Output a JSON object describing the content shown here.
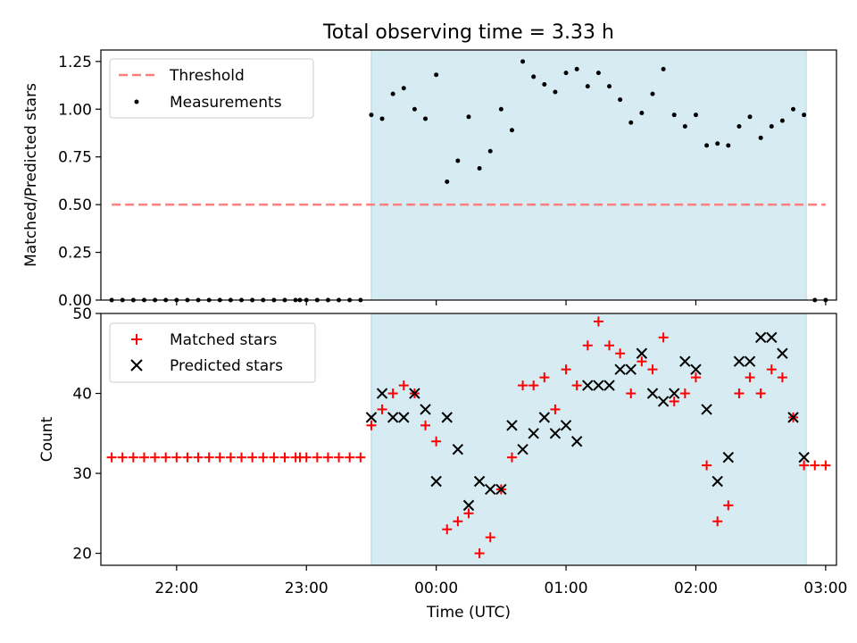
{
  "figure": {
    "title": "Total observing time = 3.33 h"
  },
  "chart_data": [
    {
      "type": "scatter",
      "ylabel": "Matched/Predicted stars",
      "ylim": [
        0,
        1.31
      ],
      "xlim": [
        "21:25",
        "03:05"
      ],
      "y_ticks": [
        "0.00",
        "0.25",
        "0.50",
        "0.75",
        "1.00",
        "1.25"
      ],
      "grid": false,
      "legend_placement": "top-left",
      "observing_window": {
        "start": "23:30",
        "end": "02:51",
        "color": "#add8e6"
      },
      "threshold": {
        "name": "Threshold",
        "value": 0.5,
        "x_range": [
          "21:30",
          "03:00"
        ],
        "color": "#ff7f7f"
      },
      "series": [
        {
          "name": "Measurements",
          "color": "#000000",
          "points": [
            [
              "21:30",
              0
            ],
            [
              "21:35",
              0
            ],
            [
              "21:40",
              0
            ],
            [
              "21:45",
              0
            ],
            [
              "21:50",
              0
            ],
            [
              "21:55",
              0
            ],
            [
              "22:00",
              0
            ],
            [
              "22:05",
              0
            ],
            [
              "22:10",
              0
            ],
            [
              "22:15",
              0
            ],
            [
              "22:20",
              0
            ],
            [
              "22:25",
              0
            ],
            [
              "22:30",
              0
            ],
            [
              "22:35",
              0
            ],
            [
              "22:40",
              0
            ],
            [
              "22:45",
              0
            ],
            [
              "22:50",
              0
            ],
            [
              "22:55",
              0
            ],
            [
              "22:57",
              0
            ],
            [
              "23:00",
              0
            ],
            [
              "23:05",
              0
            ],
            [
              "23:10",
              0
            ],
            [
              "23:15",
              0
            ],
            [
              "23:20",
              0
            ],
            [
              "23:25",
              0
            ],
            [
              "23:30",
              0.97
            ],
            [
              "23:35",
              0.95
            ],
            [
              "23:40",
              1.08
            ],
            [
              "23:45",
              1.11
            ],
            [
              "23:50",
              1.0
            ],
            [
              "23:55",
              0.95
            ],
            [
              "00:00",
              1.18
            ],
            [
              "00:05",
              0.62
            ],
            [
              "00:10",
              0.73
            ],
            [
              "00:15",
              0.96
            ],
            [
              "00:20",
              0.69
            ],
            [
              "00:25",
              0.78
            ],
            [
              "00:30",
              1.0
            ],
            [
              "00:35",
              0.89
            ],
            [
              "00:40",
              1.25
            ],
            [
              "00:45",
              1.17
            ],
            [
              "00:50",
              1.13
            ],
            [
              "00:55",
              1.09
            ],
            [
              "01:00",
              1.19
            ],
            [
              "01:05",
              1.21
            ],
            [
              "01:10",
              1.12
            ],
            [
              "01:15",
              1.19
            ],
            [
              "01:20",
              1.12
            ],
            [
              "01:25",
              1.05
            ],
            [
              "01:30",
              0.93
            ],
            [
              "01:35",
              0.98
            ],
            [
              "01:40",
              1.08
            ],
            [
              "01:45",
              1.21
            ],
            [
              "01:50",
              0.97
            ],
            [
              "01:55",
              0.91
            ],
            [
              "02:00",
              0.97
            ],
            [
              "02:05",
              0.81
            ],
            [
              "02:10",
              0.82
            ],
            [
              "02:15",
              0.81
            ],
            [
              "02:20",
              0.91
            ],
            [
              "02:25",
              0.96
            ],
            [
              "02:30",
              0.85
            ],
            [
              "02:35",
              0.91
            ],
            [
              "02:40",
              0.94
            ],
            [
              "02:45",
              1.0
            ],
            [
              "02:50",
              0.97
            ],
            [
              "02:55",
              0
            ],
            [
              "03:00",
              0
            ]
          ]
        }
      ]
    },
    {
      "type": "scatter",
      "xlabel": "Time (UTC)",
      "ylabel": "Count",
      "ylim": [
        18.5,
        50
      ],
      "xlim": [
        "21:25",
        "03:05"
      ],
      "x_ticks": [
        "22:00",
        "23:00",
        "00:00",
        "01:00",
        "02:00",
        "03:00"
      ],
      "y_ticks": [
        "20",
        "30",
        "40",
        "50"
      ],
      "grid": false,
      "legend_placement": "top-left",
      "observing_window": {
        "start": "23:30",
        "end": "02:51",
        "color": "#add8e6"
      },
      "series": [
        {
          "name": "Matched stars",
          "marker": "+",
          "color": "#ff0000",
          "points": [
            [
              "21:30",
              32
            ],
            [
              "21:35",
              32
            ],
            [
              "21:40",
              32
            ],
            [
              "21:45",
              32
            ],
            [
              "21:50",
              32
            ],
            [
              "21:55",
              32
            ],
            [
              "22:00",
              32
            ],
            [
              "22:05",
              32
            ],
            [
              "22:10",
              32
            ],
            [
              "22:15",
              32
            ],
            [
              "22:20",
              32
            ],
            [
              "22:25",
              32
            ],
            [
              "22:30",
              32
            ],
            [
              "22:35",
              32
            ],
            [
              "22:40",
              32
            ],
            [
              "22:45",
              32
            ],
            [
              "22:50",
              32
            ],
            [
              "22:55",
              32
            ],
            [
              "22:57",
              32
            ],
            [
              "23:00",
              32
            ],
            [
              "23:05",
              32
            ],
            [
              "23:10",
              32
            ],
            [
              "23:15",
              32
            ],
            [
              "23:20",
              32
            ],
            [
              "23:25",
              32
            ],
            [
              "23:30",
              36
            ],
            [
              "23:35",
              38
            ],
            [
              "23:40",
              40
            ],
            [
              "23:45",
              41
            ],
            [
              "23:50",
              40
            ],
            [
              "23:55",
              36
            ],
            [
              "00:00",
              34
            ],
            [
              "00:05",
              23
            ],
            [
              "00:10",
              24
            ],
            [
              "00:15",
              25
            ],
            [
              "00:20",
              20
            ],
            [
              "00:25",
              22
            ],
            [
              "00:30",
              28
            ],
            [
              "00:35",
              32
            ],
            [
              "00:40",
              41
            ],
            [
              "00:45",
              41
            ],
            [
              "00:50",
              42
            ],
            [
              "00:55",
              38
            ],
            [
              "01:00",
              43
            ],
            [
              "01:05",
              41
            ],
            [
              "01:10",
              46
            ],
            [
              "01:15",
              49
            ],
            [
              "01:20",
              46
            ],
            [
              "01:25",
              45
            ],
            [
              "01:30",
              40
            ],
            [
              "01:35",
              44
            ],
            [
              "01:40",
              43
            ],
            [
              "01:45",
              47
            ],
            [
              "01:50",
              39
            ],
            [
              "01:55",
              40
            ],
            [
              "02:00",
              42
            ],
            [
              "02:05",
              31
            ],
            [
              "02:10",
              24
            ],
            [
              "02:15",
              26
            ],
            [
              "02:20",
              40
            ],
            [
              "02:25",
              42
            ],
            [
              "02:30",
              40
            ],
            [
              "02:35",
              43
            ],
            [
              "02:40",
              42
            ],
            [
              "02:45",
              37
            ],
            [
              "02:50",
              31
            ],
            [
              "02:55",
              31
            ],
            [
              "03:00",
              31
            ]
          ]
        },
        {
          "name": "Predicted stars",
          "marker": "x",
          "color": "#000000",
          "points": [
            [
              "23:30",
              37
            ],
            [
              "23:35",
              40
            ],
            [
              "23:40",
              37
            ],
            [
              "23:45",
              37
            ],
            [
              "23:50",
              40
            ],
            [
              "23:55",
              38
            ],
            [
              "00:00",
              29
            ],
            [
              "00:05",
              37
            ],
            [
              "00:10",
              33
            ],
            [
              "00:15",
              26
            ],
            [
              "00:20",
              29
            ],
            [
              "00:25",
              28
            ],
            [
              "00:30",
              28
            ],
            [
              "00:35",
              36
            ],
            [
              "00:40",
              33
            ],
            [
              "00:45",
              35
            ],
            [
              "00:50",
              37
            ],
            [
              "00:55",
              35
            ],
            [
              "01:00",
              36
            ],
            [
              "01:05",
              34
            ],
            [
              "01:10",
              41
            ],
            [
              "01:15",
              41
            ],
            [
              "01:20",
              41
            ],
            [
              "01:25",
              43
            ],
            [
              "01:30",
              43
            ],
            [
              "01:35",
              45
            ],
            [
              "01:40",
              40
            ],
            [
              "01:45",
              39
            ],
            [
              "01:50",
              40
            ],
            [
              "01:55",
              44
            ],
            [
              "02:00",
              43
            ],
            [
              "02:05",
              38
            ],
            [
              "02:10",
              29
            ],
            [
              "02:15",
              32
            ],
            [
              "02:20",
              44
            ],
            [
              "02:25",
              44
            ],
            [
              "02:30",
              47
            ],
            [
              "02:35",
              47
            ],
            [
              "02:40",
              45
            ],
            [
              "02:45",
              37
            ],
            [
              "02:50",
              32
            ]
          ]
        }
      ]
    }
  ]
}
